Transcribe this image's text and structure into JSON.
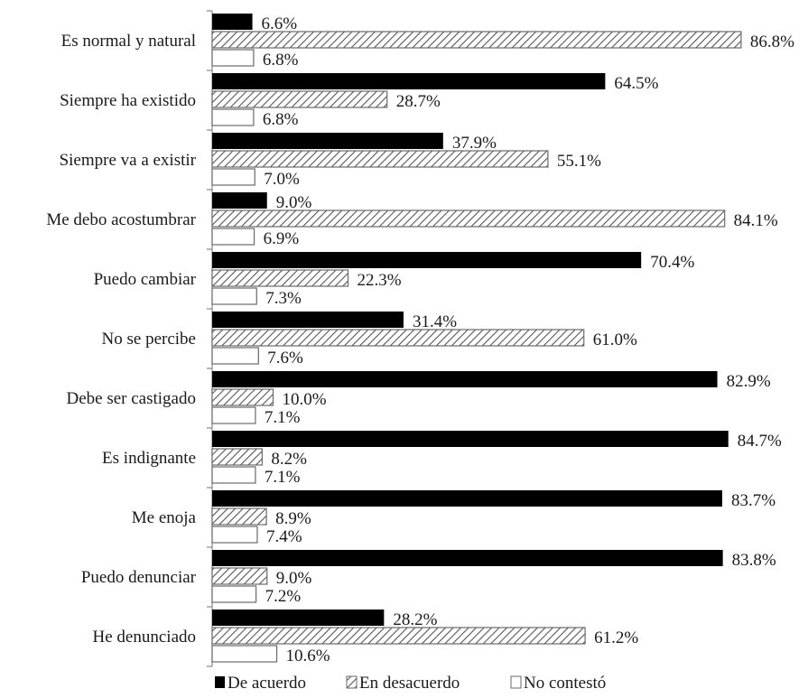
{
  "chart_data": {
    "type": "bar",
    "orientation": "horizontal",
    "categories": [
      "Es normal y natural",
      "Siempre ha existido",
      "Siempre va a existir",
      "Me debo acostumbrar",
      "Puedo cambiar",
      "No se percibe",
      "Debe ser castigado",
      "Es indignante",
      "Me enoja",
      "Puedo denunciar",
      "He denunciado"
    ],
    "series": [
      {
        "name": "De acuerdo",
        "style": "solid",
        "color": "#000000",
        "values": [
          6.6,
          64.5,
          37.9,
          9.0,
          70.4,
          31.4,
          82.9,
          84.7,
          83.7,
          83.8,
          28.2
        ],
        "labels": [
          "6.6%",
          "64.5%",
          "37.9%",
          "9.0%",
          "70.4%",
          "31.4%",
          "82.9%",
          "84.7%",
          "83.7%",
          "83.8%",
          "28.2%"
        ]
      },
      {
        "name": "En desacuerdo",
        "style": "hatched",
        "color": "#555555",
        "values": [
          86.8,
          28.7,
          55.1,
          84.1,
          22.3,
          61.0,
          10.0,
          8.2,
          8.9,
          9.0,
          61.2
        ],
        "labels": [
          "86.8%",
          "28.7%",
          "55.1%",
          "84.1%",
          "22.3%",
          "61.0%",
          "10.0%",
          "8.2%",
          "8.9%",
          "9.0%",
          "61.2%"
        ]
      },
      {
        "name": "No contestó",
        "style": "outline",
        "color": "#000000",
        "values": [
          6.8,
          6.8,
          7.0,
          6.9,
          7.3,
          7.6,
          7.1,
          7.1,
          7.4,
          7.2,
          10.6
        ],
        "labels": [
          "6.8%",
          "6.8%",
          "7.0%",
          "6.9%",
          "7.3%",
          "7.6%",
          "7.1%",
          "7.1%",
          "7.4%",
          "7.2%",
          "10.6%"
        ]
      }
    ],
    "title": "",
    "xlabel": "",
    "ylabel": "",
    "xlim": [
      0,
      100
    ],
    "grid": false,
    "legend_position": "bottom-center"
  }
}
